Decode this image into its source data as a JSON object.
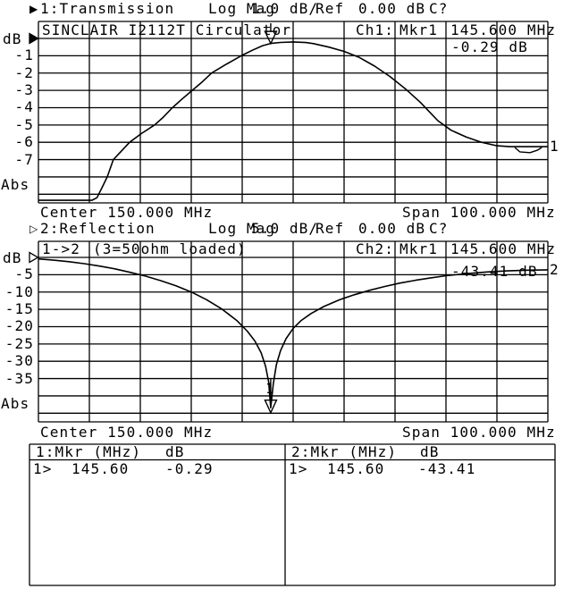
{
  "header1": {
    "indicator": "▶",
    "channel": "1:Transmission",
    "format": "Log Mag",
    "scale": "1.0 dB/",
    "ref_label": "Ref",
    "ref_value": "0.00 dB",
    "cal": "C?"
  },
  "header2": {
    "indicator": "▷",
    "channel": "2:Reflection",
    "format": "Log Mag",
    "scale": "5.0 dB/",
    "ref_label": "Ref",
    "ref_value": "0.00 dB",
    "cal": "C?"
  },
  "chart1": {
    "title": "SINCLAIR I2112T Circulator",
    "ch_label": "Ch1:",
    "mkr_label": "Mkr1",
    "mkr_freq": "145.600 MHz",
    "mkr_value": "-0.29 dB",
    "unit": "dB",
    "abs": "Abs",
    "ticks": [
      "-1",
      "-2",
      "-3",
      "-4",
      "-5",
      "-6",
      "-7"
    ],
    "center": "Center 150.000 MHz",
    "span": "Span 100.000 MHz",
    "trace_num": "1"
  },
  "chart2": {
    "title_port": "1->2",
    "title_note": "(3=50ohm loaded)",
    "ch_label": "Ch2:",
    "mkr_label": "Mkr1",
    "mkr_freq": "145.600 MHz",
    "mkr_value": "-43.41 dB",
    "unit": "dB",
    "abs": "Abs",
    "ticks": [
      "-5",
      "-10",
      "-15",
      "-20",
      "-25",
      "-30",
      "-35"
    ],
    "center": "Center 150.000 MHz",
    "span": "Span 100.000 MHz",
    "trace_num": "2",
    "marker_num": "1"
  },
  "table": {
    "left": {
      "header": "1:Mkr (MHz)",
      "unit_header": "dB",
      "marker": "1>",
      "freq": "145.60",
      "value": "-0.29"
    },
    "right": {
      "header": "2:Mkr (MHz)",
      "unit_header": "dB",
      "marker": "1>",
      "freq": "145.60",
      "value": "-43.41"
    }
  },
  "colors": {
    "fg": "#000000",
    "bg": "#ffffff"
  },
  "chart_data": [
    {
      "type": "line",
      "name": "Ch1 Transmission S21 Log Mag",
      "title": "SINCLAIR I2112T Circulator",
      "scale_db_per_div": 1.0,
      "ref_db": 0.0,
      "xlim": [
        100,
        200
      ],
      "ylim": [
        -9.5,
        0
      ],
      "xlabel": "Center 150.000 MHz  Span 100.000 MHz",
      "ylabel": "dB",
      "legend": "1:Transmission",
      "grid": true,
      "marker": {
        "label": "Mkr1",
        "x_mhz": 145.6,
        "y_db": -0.29
      },
      "x": [
        100,
        110.5,
        111.5,
        112.5,
        113.5,
        114.7,
        116.3,
        117.9,
        120.2,
        122.8,
        124.5,
        126.3,
        128.2,
        130.2,
        132,
        134,
        136.8,
        139.8,
        142,
        144,
        145.6,
        147.5,
        150,
        152.5,
        154,
        157,
        160,
        163,
        166,
        169,
        172,
        175,
        178.4,
        181,
        184,
        187,
        190,
        192.5,
        200
      ],
      "y": [
        -9.35,
        -9.35,
        -9.2,
        -8.6,
        -8,
        -7,
        -6.5,
        -6,
        -5.5,
        -5,
        -4.55,
        -4,
        -3.5,
        -3,
        -2.55,
        -2,
        -1.5,
        -1,
        -0.68,
        -0.42,
        -0.29,
        -0.23,
        -0.2,
        -0.24,
        -0.3,
        -0.5,
        -0.75,
        -1.1,
        -1.6,
        -2.2,
        -2.9,
        -3.7,
        -4.75,
        -5.3,
        -5.7,
        -6,
        -6.2,
        -6.25,
        -6.25
      ],
      "ripple_x": [
        193.5,
        194.5,
        196.5,
        198,
        198.8
      ],
      "ripple_y": [
        -6.3,
        -6.55,
        -6.6,
        -6.45,
        -6.3
      ]
    },
    {
      "type": "line",
      "name": "Ch2 Reflection S11 Log Mag",
      "title": "1->2 (3=50ohm loaded)",
      "scale_db_per_div": 5.0,
      "ref_db": 0.0,
      "xlim": [
        100,
        200
      ],
      "ylim": [
        -47.5,
        0
      ],
      "xlabel": "Center 150.000 MHz  Span 100.000 MHz",
      "ylabel": "dB",
      "legend": "2:Reflection",
      "grid": true,
      "marker": {
        "label": "Mkr1",
        "x_mhz": 145.6,
        "y_db": -43.41
      },
      "x": [
        100,
        103,
        106,
        109,
        112,
        115,
        118,
        121,
        124,
        127,
        130,
        133,
        136,
        139,
        141,
        142.5,
        143.7,
        144.6,
        145.2,
        145.6,
        146.1,
        146.7,
        147.5,
        148.6,
        150,
        151.5,
        153.5,
        156,
        159,
        162,
        165,
        168,
        171,
        174,
        177,
        180,
        184,
        188,
        192,
        196,
        200
      ],
      "y": [
        -0.45,
        -0.8,
        -1.25,
        -1.8,
        -2.5,
        -3.3,
        -4.3,
        -5.4,
        -6.7,
        -8.2,
        -10,
        -12.2,
        -14.9,
        -18.3,
        -21.3,
        -24.2,
        -27.5,
        -31.5,
        -36,
        -43.41,
        -36.5,
        -31,
        -27,
        -23.5,
        -20.5,
        -18.3,
        -16.2,
        -14.2,
        -12.3,
        -10.8,
        -9.5,
        -8.4,
        -7.4,
        -6.6,
        -5.9,
        -5.3,
        -4.7,
        -4.2,
        -3.9,
        -3.7,
        -3.6
      ]
    }
  ]
}
